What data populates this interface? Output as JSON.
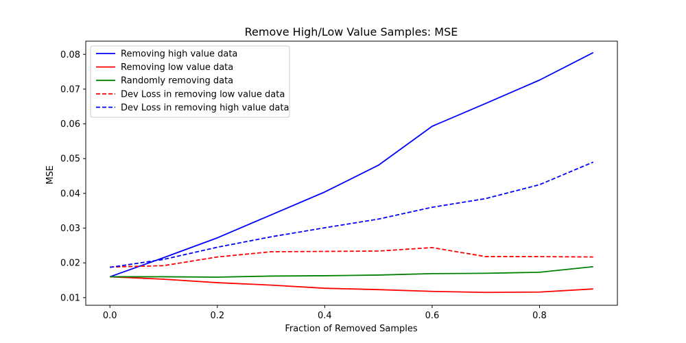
{
  "chart_data": {
    "type": "line",
    "title": "Remove High/Low Value Samples: MSE",
    "xlabel": "Fraction of Removed Samples",
    "ylabel": "MSE",
    "xlim": [
      -0.045,
      0.945
    ],
    "ylim": [
      0.0078,
      0.0838
    ],
    "xticks": [
      0.0,
      0.2,
      0.4,
      0.6,
      0.8
    ],
    "xtick_labels": [
      "0.0",
      "0.2",
      "0.4",
      "0.6",
      "0.8"
    ],
    "yticks": [
      0.01,
      0.02,
      0.03,
      0.04,
      0.05,
      0.06,
      0.07,
      0.08
    ],
    "ytick_labels": [
      "0.01",
      "0.02",
      "0.03",
      "0.04",
      "0.05",
      "0.06",
      "0.07",
      "0.08"
    ],
    "grid": false,
    "legend_position": "top-left",
    "x": [
      0.0,
      0.1,
      0.2,
      0.3,
      0.4,
      0.5,
      0.6,
      0.7,
      0.8,
      0.9
    ],
    "series": [
      {
        "name": "Removing high value data",
        "color": "#0000ff",
        "style": "solid",
        "values": [
          0.016,
          0.0215,
          0.0272,
          0.0338,
          0.0404,
          0.0481,
          0.0593,
          0.0659,
          0.0726,
          0.0805
        ]
      },
      {
        "name": "Removing low value data",
        "color": "#ff0000",
        "style": "solid",
        "values": [
          0.016,
          0.0153,
          0.0143,
          0.0136,
          0.0127,
          0.0123,
          0.0118,
          0.0115,
          0.0116,
          0.0125
        ]
      },
      {
        "name": "Randomly removing data",
        "color": "#008000",
        "style": "solid",
        "values": [
          0.016,
          0.016,
          0.0159,
          0.0162,
          0.0163,
          0.0165,
          0.0169,
          0.017,
          0.0173,
          0.0189
        ]
      },
      {
        "name": "Dev Loss in removing low value data",
        "color": "#ff0000",
        "style": "dashed",
        "values": [
          0.0188,
          0.0192,
          0.0217,
          0.0232,
          0.0233,
          0.0234,
          0.0244,
          0.0218,
          0.0218,
          0.0217
        ]
      },
      {
        "name": "Dev Loss in removing high value data",
        "color": "#0000ff",
        "style": "dashed",
        "values": [
          0.0187,
          0.021,
          0.0245,
          0.0275,
          0.0301,
          0.0326,
          0.036,
          0.0385,
          0.0425,
          0.049
        ]
      }
    ]
  }
}
